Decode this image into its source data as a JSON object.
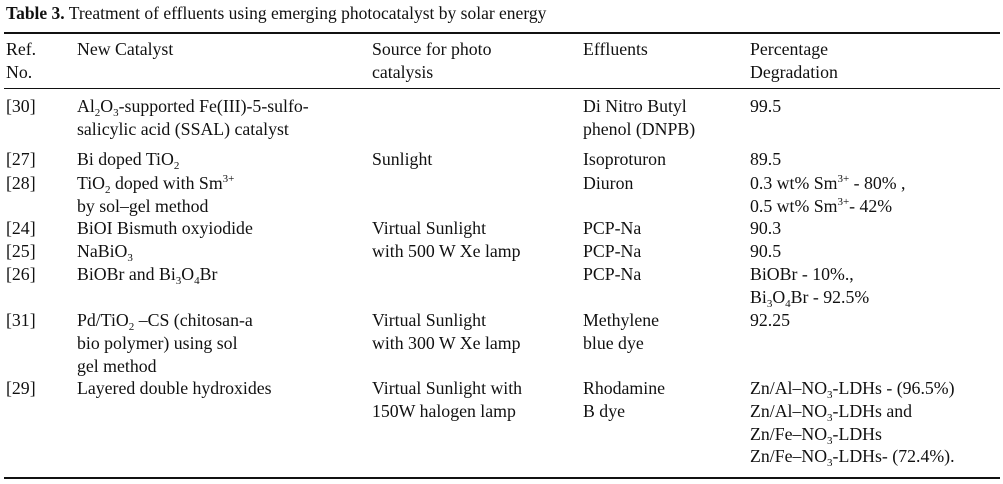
{
  "caption": {
    "label": "Table 3.",
    "text": " Treatment of effluents using emerging photocatalyst by solar energy"
  },
  "headers": {
    "ref": [
      "Ref.",
      "No."
    ],
    "catalyst": "New Catalyst",
    "source": [
      "Source for photo",
      "catalysis"
    ],
    "effluents": "Effluents",
    "degradation": [
      "Percentage",
      "Degradation"
    ]
  },
  "rows": [
    {
      "ref": "[30]",
      "catalyst": [
        [
          {
            "t": "Al"
          },
          {
            "t": "2",
            "s": "sub"
          },
          {
            "t": "O"
          },
          {
            "t": "3",
            "s": "sub"
          },
          {
            "t": "-supported Fe(III)-5-sulfo-"
          }
        ],
        [
          {
            "t": "salicylic acid (SSAL) catalyst"
          }
        ]
      ],
      "source": [],
      "effluents": [
        "Di Nitro Butyl",
        "phenol (DNPB)"
      ],
      "degradation": [
        [
          {
            "t": "99.5"
          }
        ]
      ]
    },
    {
      "ref": "[27]",
      "catalyst": [
        [
          {
            "t": "Bi doped TiO"
          },
          {
            "t": "2",
            "s": "sub"
          }
        ]
      ],
      "source": [
        "Sunlight"
      ],
      "effluents": [
        "Isoproturon"
      ],
      "degradation": [
        [
          {
            "t": "89.5"
          }
        ]
      ]
    },
    {
      "ref": "[28]",
      "catalyst": [
        [
          {
            "t": "TiO"
          },
          {
            "t": "2",
            "s": "sub"
          },
          {
            "t": " doped with Sm"
          },
          {
            "t": "3+",
            "s": "sup"
          }
        ],
        [
          {
            "t": "by sol–gel method"
          }
        ]
      ],
      "source": [],
      "effluents": [
        "Diuron"
      ],
      "degradation": [
        [
          {
            "t": "0.3 wt% Sm"
          },
          {
            "t": "3+",
            "s": "sup"
          },
          {
            "t": " - 80% ,"
          }
        ],
        [
          {
            "t": "0.5 wt% Sm"
          },
          {
            "t": "3+",
            "s": "sup"
          },
          {
            "t": "- 42%"
          }
        ]
      ]
    },
    {
      "ref": "[24]",
      "catalyst": [
        [
          {
            "t": "BiOI Bismuth oxyiodide"
          }
        ]
      ],
      "source": [
        "Virtual Sunlight",
        "with 500 W Xe lamp"
      ],
      "effluents": [
        "PCP-Na"
      ],
      "degradation": [
        [
          {
            "t": "90.3"
          }
        ]
      ]
    },
    {
      "ref": "[25]",
      "catalyst": [
        [
          {
            "t": "NaBiO"
          },
          {
            "t": "3",
            "s": "sub"
          }
        ]
      ],
      "source": [],
      "effluents": [
        "PCP-Na"
      ],
      "degradation": [
        [
          {
            "t": "90.5"
          }
        ]
      ]
    },
    {
      "ref": "[26]",
      "catalyst": [
        [
          {
            "t": "BiOBr and Bi"
          },
          {
            "t": "3",
            "s": "sub"
          },
          {
            "t": "O"
          },
          {
            "t": "4",
            "s": "sub"
          },
          {
            "t": "Br"
          }
        ]
      ],
      "source": [],
      "effluents": [
        "PCP-Na"
      ],
      "degradation": [
        [
          {
            "t": "BiOBr - 10%.,"
          }
        ],
        [
          {
            "t": "Bi"
          },
          {
            "t": "3",
            "s": "sub"
          },
          {
            "t": "O"
          },
          {
            "t": "4",
            "s": "sub"
          },
          {
            "t": "Br - 92.5%"
          }
        ]
      ]
    },
    {
      "ref": "[31]",
      "catalyst": [
        [
          {
            "t": "Pd/TiO"
          },
          {
            "t": "2",
            "s": "sub"
          },
          {
            "t": " –CS (chitosan-a"
          }
        ],
        [
          {
            "t": "bio polymer) using sol"
          }
        ],
        [
          {
            "t": "gel method"
          }
        ]
      ],
      "source": [
        "Virtual Sunlight",
        "with 300 W Xe lamp"
      ],
      "effluents": [
        "Methylene",
        "blue dye"
      ],
      "degradation": [
        [
          {
            "t": "92.25"
          }
        ]
      ]
    },
    {
      "ref": "[29]",
      "catalyst": [
        [
          {
            "t": "Layered double hydroxides"
          }
        ]
      ],
      "source": [
        "Virtual Sunlight with",
        "150W halogen lamp"
      ],
      "effluents": [
        "Rhodamine",
        "B dye"
      ],
      "degradation": [
        [
          {
            "t": "Zn/Al–NO"
          },
          {
            "t": "3",
            "s": "sub"
          },
          {
            "t": "-LDHs - (96.5%)"
          }
        ],
        [
          {
            "t": "Zn/Al–NO"
          },
          {
            "t": "3",
            "s": "sub"
          },
          {
            "t": "-LDHs and"
          }
        ],
        [
          {
            "t": "Zn/Fe–NO"
          },
          {
            "t": "3",
            "s": "sub"
          },
          {
            "t": "-LDHs"
          }
        ],
        [
          {
            "t": "Zn/Fe–NO"
          },
          {
            "t": "3",
            "s": "sub"
          },
          {
            "t": "-LDHs- (72.4%)."
          }
        ]
      ]
    }
  ]
}
